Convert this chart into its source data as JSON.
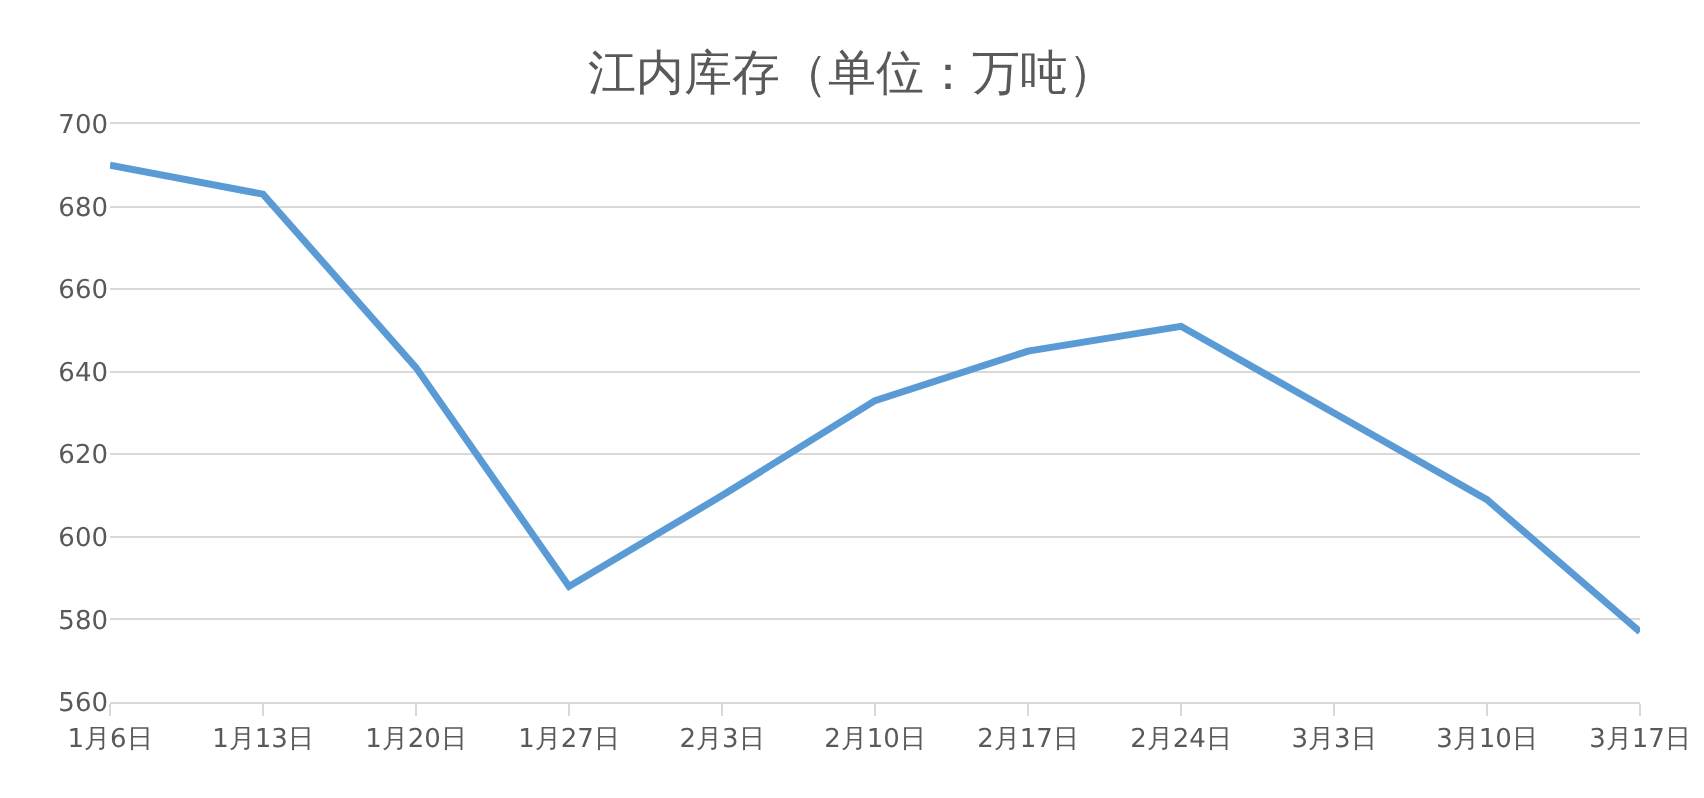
{
  "chart_data": {
    "type": "line",
    "title": "江内库存（单位：万吨）",
    "categories": [
      "1月6日",
      "1月13日",
      "1月20日",
      "1月27日",
      "2月3日",
      "2月10日",
      "2月17日",
      "2月24日",
      "3月3日",
      "3月10日",
      "3月17日"
    ],
    "series": [
      {
        "color": "#5b9bd5",
        "values": [
          690,
          683,
          641,
          588,
          610,
          633,
          645,
          651,
          630,
          609,
          577
        ]
      }
    ],
    "ylim": [
      560,
      700
    ],
    "yticks": [
      560,
      580,
      600,
      620,
      640,
      660,
      680,
      700
    ],
    "grid": "y",
    "marker": "none",
    "line_style": "solid"
  }
}
